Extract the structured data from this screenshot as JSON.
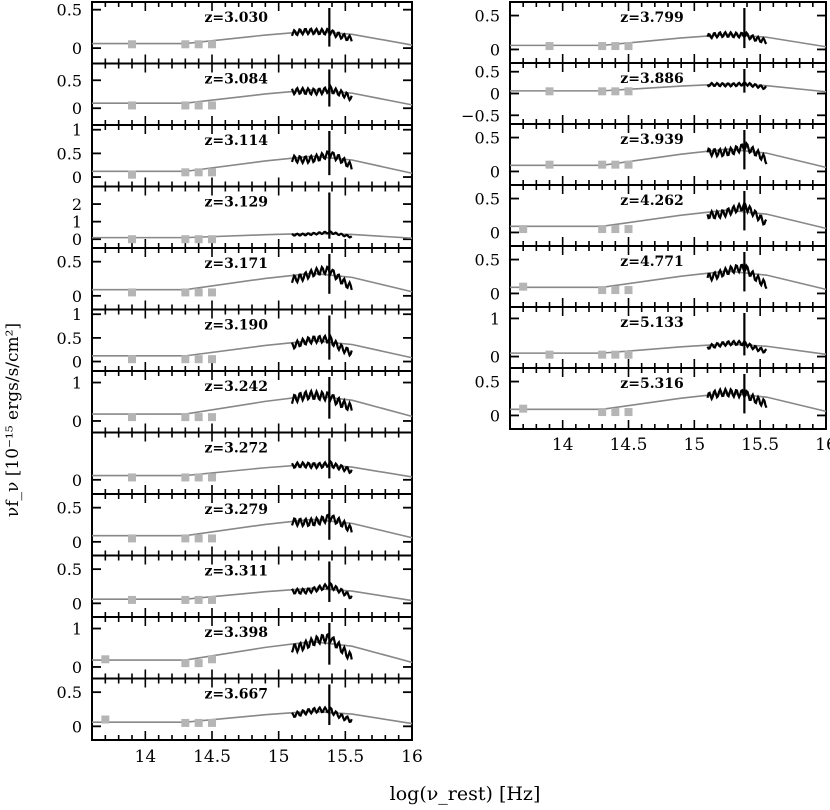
{
  "figure": {
    "ylabel": "νf_ν [10⁻¹⁵ ergs/s/cm²]",
    "xlabel": "log(ν_rest) [Hz]"
  },
  "chart_data": [
    {
      "type": "line",
      "column": "left",
      "xlim": [
        13.6,
        16.0
      ],
      "xticks": [
        14,
        14.5,
        15,
        15.5,
        16
      ],
      "xtick_labels": [
        "14",
        "14.5",
        "15",
        "15.5",
        "16"
      ],
      "panels": [
        {
          "label": "z=3.030",
          "ylim": [
            -0.2,
            0.6
          ],
          "yticks": [
            0,
            0.5
          ],
          "ytick_labels": [
            "0",
            "0.5"
          ],
          "phot": [
            [
              13.9,
              0.05
            ],
            [
              14.3,
              0.05
            ],
            [
              14.4,
              0.05
            ],
            [
              14.5,
              0.05
            ]
          ],
          "spec_peak": 0.2
        },
        {
          "label": "z=3.084",
          "ylim": [
            -0.3,
            0.8
          ],
          "yticks": [
            0,
            0.5
          ],
          "ytick_labels": [
            "0",
            "0.5"
          ],
          "phot": [
            [
              13.9,
              0.05
            ],
            [
              14.3,
              0.05
            ],
            [
              14.4,
              0.05
            ],
            [
              14.5,
              0.05
            ]
          ],
          "spec_peak": 0.3
        },
        {
          "label": "z=3.114",
          "ylim": [
            -0.2,
            1.1
          ],
          "yticks": [
            0,
            0.5,
            1
          ],
          "ytick_labels": [
            "0",
            "0.5",
            "1"
          ],
          "phot": [
            [
              13.9,
              0.05
            ],
            [
              14.3,
              0.1
            ],
            [
              14.4,
              0.1
            ],
            [
              14.5,
              0.1
            ]
          ],
          "spec_peak": 0.4
        },
        {
          "label": "z=3.129",
          "ylim": [
            -0.5,
            3.0
          ],
          "yticks": [
            0,
            1,
            2
          ],
          "ytick_labels": [
            "0",
            "1",
            "2"
          ],
          "phot": [
            [
              13.9,
              0.0
            ],
            [
              14.3,
              0.0
            ],
            [
              14.4,
              0.0
            ],
            [
              14.5,
              0.0
            ]
          ],
          "spec_peak": 0.3
        },
        {
          "label": "z=3.171",
          "ylim": [
            -0.2,
            0.7
          ],
          "yticks": [
            0,
            0.5
          ],
          "ytick_labels": [
            "0",
            "0.5"
          ],
          "phot": [
            [
              13.9,
              0.05
            ],
            [
              14.3,
              0.05
            ],
            [
              14.4,
              0.05
            ],
            [
              14.5,
              0.05
            ]
          ],
          "spec_peak": 0.3
        },
        {
          "label": "z=3.190",
          "ylim": [
            -0.2,
            1.1
          ],
          "yticks": [
            0,
            0.5,
            1
          ],
          "ytick_labels": [
            "0",
            "0.5",
            "1"
          ],
          "phot": [
            [
              13.9,
              0.05
            ],
            [
              14.3,
              0.05
            ],
            [
              14.4,
              0.05
            ],
            [
              14.5,
              0.05
            ]
          ],
          "spec_peak": 0.4
        },
        {
          "label": "z=3.242",
          "ylim": [
            -0.3,
            1.3
          ],
          "yticks": [
            0,
            1
          ],
          "ytick_labels": [
            "0",
            "1"
          ],
          "phot": [
            [
              13.9,
              0.1
            ],
            [
              14.3,
              0.1
            ],
            [
              14.4,
              0.1
            ],
            [
              14.5,
              0.1
            ]
          ],
          "spec_peak": 0.6
        },
        {
          "label": "z=3.272",
          "ylim": [
            -0.3,
            1.0
          ],
          "yticks": [
            0
          ],
          "ytick_labels": [
            "0"
          ],
          "phot": [
            [
              13.9,
              0.05
            ],
            [
              14.3,
              0.05
            ],
            [
              14.4,
              0.05
            ],
            [
              14.5,
              0.05
            ]
          ],
          "spec_peak": 0.3
        },
        {
          "label": "z=3.279",
          "ylim": [
            -0.2,
            0.7
          ],
          "yticks": [
            0,
            0.5
          ],
          "ytick_labels": [
            "0",
            "0.5"
          ],
          "phot": [
            [
              13.9,
              0.05
            ],
            [
              14.3,
              0.05
            ],
            [
              14.4,
              0.05
            ],
            [
              14.5,
              0.05
            ]
          ],
          "spec_peak": 0.3
        },
        {
          "label": "z=3.311",
          "ylim": [
            -0.2,
            0.7
          ],
          "yticks": [
            0,
            0.5
          ],
          "ytick_labels": [
            "0",
            "0.5"
          ],
          "phot": [
            [
              13.9,
              0.05
            ],
            [
              14.3,
              0.05
            ],
            [
              14.4,
              0.05
            ],
            [
              14.5,
              0.05
            ]
          ],
          "spec_peak": 0.2
        },
        {
          "label": "z=3.398",
          "ylim": [
            -0.3,
            1.3
          ],
          "yticks": [
            0,
            1
          ],
          "ytick_labels": [
            "0",
            "1"
          ],
          "phot": [
            [
              13.7,
              0.2
            ],
            [
              14.3,
              0.1
            ],
            [
              14.4,
              0.1
            ],
            [
              14.5,
              0.2
            ]
          ],
          "spec_peak": 0.6
        },
        {
          "label": "z=3.667",
          "ylim": [
            -0.2,
            0.7
          ],
          "yticks": [
            0,
            0.5
          ],
          "ytick_labels": [
            "0",
            "0.5"
          ],
          "phot": [
            [
              13.7,
              0.1
            ],
            [
              14.3,
              0.05
            ],
            [
              14.4,
              0.05
            ],
            [
              14.5,
              0.05
            ]
          ],
          "spec_peak": 0.2
        }
      ]
    },
    {
      "type": "line",
      "column": "right",
      "xlim": [
        13.6,
        16.0
      ],
      "xticks": [
        14,
        14.5,
        15,
        15.5,
        16
      ],
      "xtick_labels": [
        "14",
        "14.5",
        "15",
        "15.5",
        "16"
      ],
      "panels": [
        {
          "label": "z=3.799",
          "ylim": [
            -0.2,
            0.7
          ],
          "yticks": [
            0,
            0.5
          ],
          "ytick_labels": [
            "0",
            "0.5"
          ],
          "phot": [
            [
              13.9,
              0.05
            ],
            [
              14.3,
              0.05
            ],
            [
              14.4,
              0.05
            ],
            [
              14.5,
              0.05
            ]
          ],
          "spec_peak": 0.2
        },
        {
          "label": "z=3.886",
          "ylim": [
            -0.7,
            0.7
          ],
          "yticks": [
            -0.5,
            0,
            0.5
          ],
          "ytick_labels": [
            "−0.5",
            "0",
            "0.5"
          ],
          "phot": [
            [
              13.9,
              0.05
            ],
            [
              14.3,
              0.05
            ],
            [
              14.4,
              0.05
            ],
            [
              14.5,
              0.05
            ]
          ],
          "spec_peak": 0.2
        },
        {
          "label": "z=3.939",
          "ylim": [
            -0.2,
            0.7
          ],
          "yticks": [
            0,
            0.5
          ],
          "ytick_labels": [
            "0",
            "0.5"
          ],
          "phot": [
            [
              13.9,
              0.1
            ],
            [
              14.3,
              0.1
            ],
            [
              14.4,
              0.1
            ],
            [
              14.5,
              0.1
            ]
          ],
          "spec_peak": 0.3
        },
        {
          "label": "z=4.262",
          "ylim": [
            -0.2,
            0.7
          ],
          "yticks": [
            0,
            0.5
          ],
          "ytick_labels": [
            "0",
            "0.5"
          ],
          "phot": [
            [
              13.7,
              0.05
            ],
            [
              14.3,
              0.05
            ],
            [
              14.4,
              0.05
            ],
            [
              14.5,
              0.05
            ]
          ],
          "spec_peak": 0.3
        },
        {
          "label": "z=4.771",
          "ylim": [
            -0.2,
            0.7
          ],
          "yticks": [
            0,
            0.5
          ],
          "ytick_labels": [
            "0",
            "0.5"
          ],
          "phot": [
            [
              13.7,
              0.1
            ],
            [
              14.3,
              0.05
            ],
            [
              14.4,
              0.05
            ],
            [
              14.5,
              0.05
            ]
          ],
          "spec_peak": 0.3
        },
        {
          "label": "z=5.133",
          "ylim": [
            -0.3,
            1.3
          ],
          "yticks": [
            0,
            1
          ],
          "ytick_labels": [
            "0",
            "1"
          ],
          "phot": [
            [
              13.9,
              0.05
            ],
            [
              14.3,
              0.05
            ],
            [
              14.4,
              0.05
            ],
            [
              14.5,
              0.05
            ]
          ],
          "spec_peak": 0.3
        },
        {
          "label": "z=5.316",
          "ylim": [
            -0.2,
            0.7
          ],
          "yticks": [
            0,
            0.5
          ],
          "ytick_labels": [
            "0",
            "0.5"
          ],
          "phot": [
            [
              13.7,
              0.1
            ],
            [
              14.3,
              0.05
            ],
            [
              14.4,
              0.05
            ],
            [
              14.5,
              0.05
            ]
          ],
          "spec_peak": 0.3
        }
      ]
    }
  ]
}
